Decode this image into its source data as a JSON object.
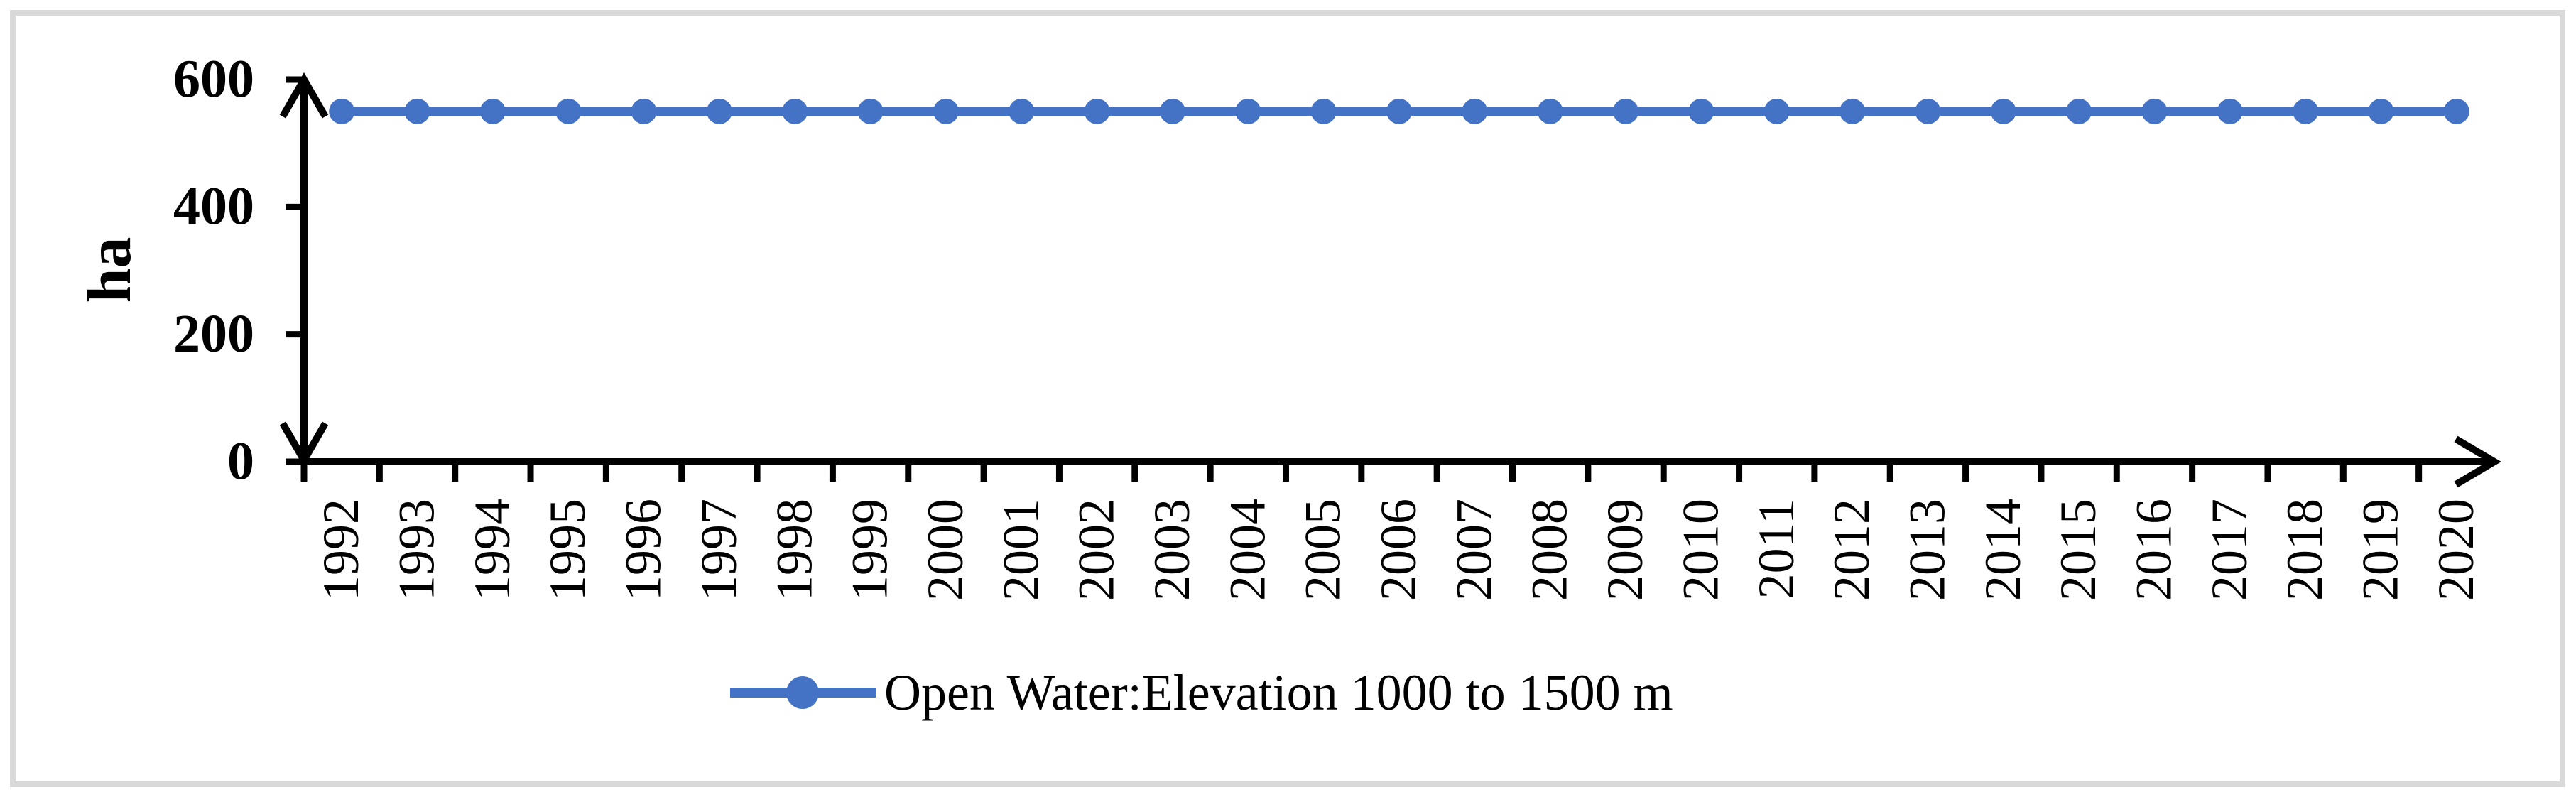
{
  "frame": {
    "border_color": "#d9d9d9",
    "background_color": "#ffffff"
  },
  "axes": {
    "color": "#000000",
    "y_unit_label": "ha"
  },
  "legend": {
    "label": "Open Water:Elevation 1000 to 1500 m",
    "marker_color": "#4472c4",
    "marker_shape": "circle-on-line"
  },
  "chart_data": {
    "type": "line",
    "title": "",
    "xlabel": "",
    "ylabel": "ha",
    "ylim": [
      0,
      600
    ],
    "y_ticks": [
      0,
      200,
      400,
      600
    ],
    "grid": false,
    "axis_arrows": true,
    "legend_position": "bottom-center",
    "marker": "circle",
    "categories": [
      "1992",
      "1993",
      "1994",
      "1995",
      "1996",
      "1997",
      "1998",
      "1999",
      "2000",
      "2001",
      "2002",
      "2003",
      "2004",
      "2005",
      "2006",
      "2007",
      "2008",
      "2009",
      "2010",
      "2011",
      "2012",
      "2013",
      "2014",
      "2015",
      "2016",
      "2017",
      "2018",
      "2019",
      "2020"
    ],
    "series": [
      {
        "name": "Open Water:Elevation 1000 to 1500 m",
        "color": "#4472c4",
        "values": [
          550,
          550,
          550,
          550,
          550,
          550,
          550,
          550,
          550,
          550,
          550,
          550,
          550,
          550,
          550,
          550,
          550,
          550,
          550,
          550,
          550,
          550,
          550,
          550,
          550,
          550,
          550,
          550,
          550
        ]
      }
    ]
  }
}
